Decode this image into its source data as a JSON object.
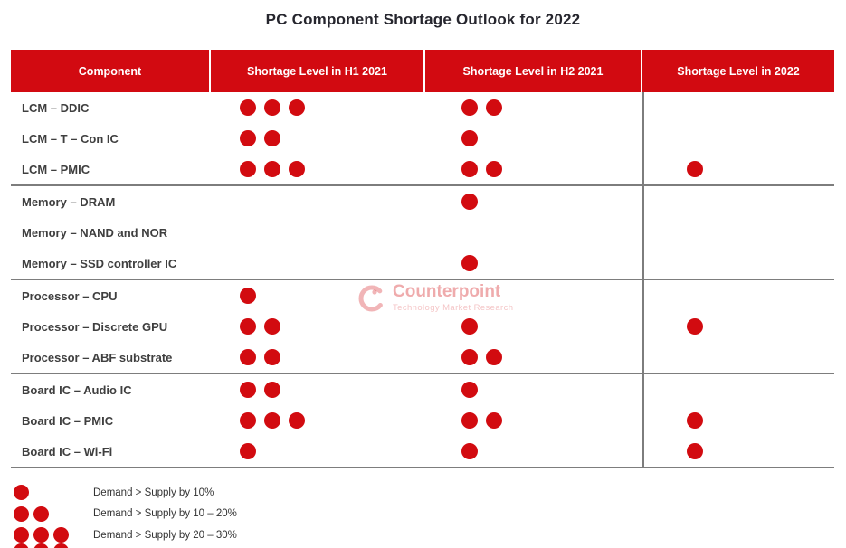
{
  "chart_data": {
    "type": "table",
    "title": "PC Component Shortage Outlook for 2022",
    "columns": [
      "Component",
      "Shortage Level in H1 2021",
      "Shortage Level in H2 2021",
      "Shortage Level in 2022"
    ],
    "dot_unit": "shortage severity dots (see legend)",
    "groups": [
      {
        "rows": [
          {
            "component": "LCM – DDIC",
            "h1_2021": 3,
            "h2_2021": 2,
            "y2022": 0
          },
          {
            "component": "LCM – T – Con IC",
            "h1_2021": 2,
            "h2_2021": 1,
            "y2022": 0
          },
          {
            "component": "LCM – PMIC",
            "h1_2021": 3,
            "h2_2021": 2,
            "y2022": 1
          }
        ]
      },
      {
        "rows": [
          {
            "component": "Memory – DRAM",
            "h1_2021": 0,
            "h2_2021": 1,
            "y2022": 0
          },
          {
            "component": "Memory – NAND and NOR",
            "h1_2021": 0,
            "h2_2021": 0,
            "y2022": 0
          },
          {
            "component": "Memory – SSD controller IC",
            "h1_2021": 0,
            "h2_2021": 1,
            "y2022": 0
          }
        ]
      },
      {
        "rows": [
          {
            "component": "Processor – CPU",
            "h1_2021": 1,
            "h2_2021": 0,
            "y2022": 0
          },
          {
            "component": "Processor – Discrete GPU",
            "h1_2021": 2,
            "h2_2021": 1,
            "y2022": 1
          },
          {
            "component": "Processor – ABF substrate",
            "h1_2021": 2,
            "h2_2021": 2,
            "y2022": 0
          }
        ]
      },
      {
        "rows": [
          {
            "component": "Board IC – Audio IC",
            "h1_2021": 2,
            "h2_2021": 1,
            "y2022": 0
          },
          {
            "component": "Board IC – PMIC",
            "h1_2021": 3,
            "h2_2021": 2,
            "y2022": 1
          },
          {
            "component": "Board IC – Wi-Fi",
            "h1_2021": 1,
            "h2_2021": 1,
            "y2022": 1
          }
        ]
      }
    ],
    "legend": {
      "items": [
        {
          "dots": 1,
          "label": "Demand > Supply by 10%"
        },
        {
          "dots": 2,
          "label": "Demand > Supply by 10 – 20%"
        },
        {
          "dots": 3,
          "label": "Demand > Supply by 20 – 30%"
        }
      ],
      "partial_row": {
        "dots": 3
      }
    }
  },
  "watermark": {
    "name": "Counterpoint",
    "tagline": "Technology Market Research"
  },
  "colors": {
    "header_bg": "#d20a11",
    "header_text": "#ffffff",
    "dot": "#d20b10",
    "divider": "#7d7d7d",
    "title_text": "#26262e",
    "row_text": "#3f3f3f",
    "legend_text": "#333333",
    "wm": "#d20b10"
  }
}
